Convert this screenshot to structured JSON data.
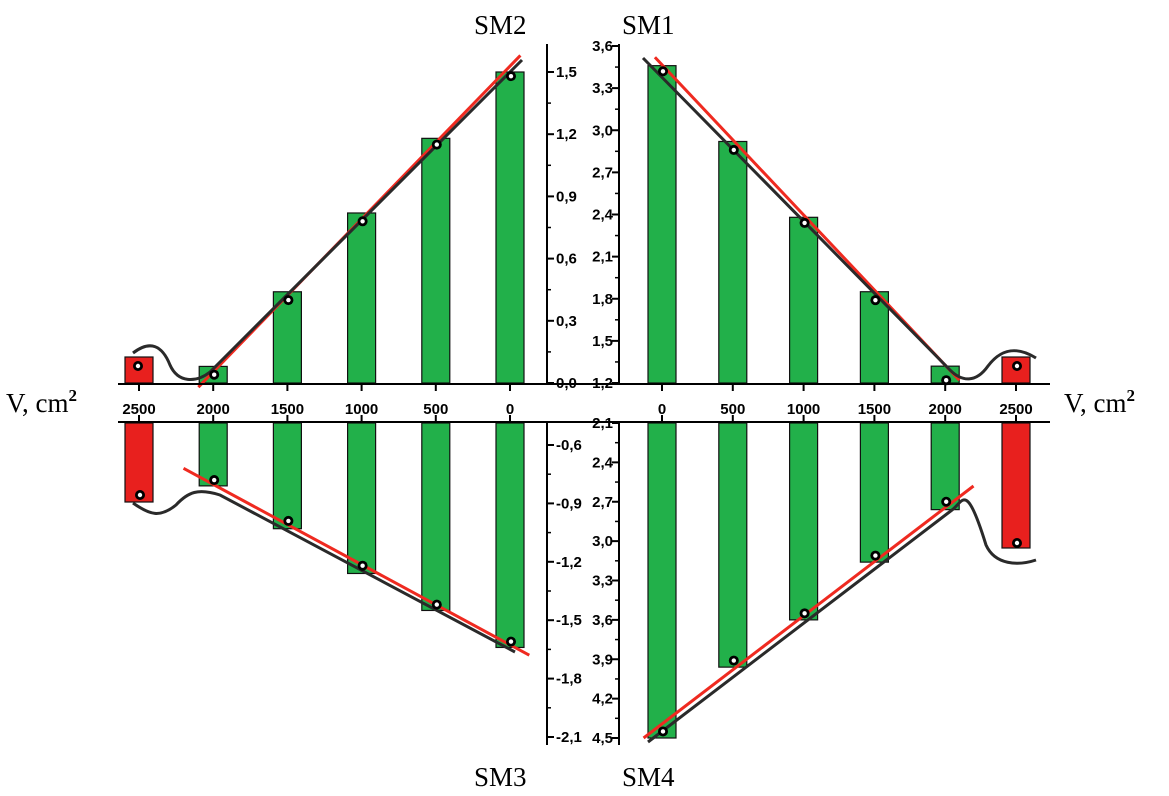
{
  "colors": {
    "bar_green": "#22b04a",
    "bar_red": "#e8201e",
    "fit_line": "#ef2a20",
    "trend_curve": "#2a2a2a",
    "axis": "#000000"
  },
  "axis_title_left": "V, cm",
  "axis_title_right": "V, cm",
  "axis_title_sup": "2",
  "chart_data": [
    {
      "type": "bar",
      "title": "SM1",
      "quadrant": "top-right",
      "categories": [
        "0",
        "500",
        "1000",
        "1500",
        "2000",
        "2500"
      ],
      "x": [
        0,
        500,
        1000,
        1500,
        2000,
        2500
      ],
      "values": [
        3.46,
        2.92,
        2.38,
        1.85,
        1.32,
        1.33
      ],
      "points": [
        3.42,
        2.86,
        2.34,
        1.79,
        1.22,
        1.3
      ],
      "ylim": [
        1.2,
        3.6
      ],
      "yticks": [
        "1,2",
        "1,5",
        "1,8",
        "2,1",
        "2,4",
        "2,7",
        "3,0",
        "3,3",
        "3,6"
      ],
      "ytick_values": [
        1.2,
        1.5,
        1.8,
        2.1,
        2.4,
        2.7,
        3.0,
        3.3,
        3.6
      ],
      "fit_line": {
        "x": [
          -50,
          2100
        ],
        "y": [
          3.52,
          1.22
        ]
      }
    },
    {
      "type": "bar",
      "title": "SM2",
      "quadrant": "top-left",
      "categories": [
        "2500",
        "2000",
        "1500",
        "1000",
        "500",
        "0"
      ],
      "x": [
        2500,
        2000,
        1500,
        1000,
        500,
        0
      ],
      "values": [
        0.13,
        0.08,
        0.44,
        0.82,
        1.18,
        1.5
      ],
      "points": [
        0.1,
        0.04,
        0.4,
        0.78,
        1.15,
        1.48
      ],
      "ylim": [
        0.0,
        1.6
      ],
      "yticks": [
        "0,0",
        "0,3",
        "0,6",
        "0,9",
        "1,2",
        "1,5"
      ],
      "ytick_values": [
        0.0,
        0.3,
        0.6,
        0.9,
        1.2,
        1.5
      ],
      "fit_line": {
        "x": [
          2100,
          -70
        ],
        "y": [
          -0.02,
          1.58
        ]
      }
    },
    {
      "type": "bar",
      "title": "SM3",
      "quadrant": "bottom-left",
      "categories": [
        "2500",
        "2000",
        "1500",
        "1000",
        "500",
        "0"
      ],
      "x": [
        2500,
        2000,
        1500,
        1000,
        500,
        0
      ],
      "values": [
        -0.88,
        -0.81,
        -1.03,
        -1.26,
        -1.45,
        -1.64
      ],
      "points": [
        -0.85,
        -0.78,
        -0.99,
        -1.22,
        -1.42,
        -1.61
      ],
      "ylim": [
        -2.1,
        -0.4
      ],
      "yticks": [
        "-0,6",
        "-0,9",
        "-1,2",
        "-1,5",
        "-1,8",
        "-2,1"
      ],
      "ytick_values": [
        -0.6,
        -0.9,
        -1.2,
        -1.5,
        -1.8,
        -2.1
      ],
      "fit_line": {
        "x": [
          2200,
          -130
        ],
        "y": [
          -0.72,
          -1.68
        ]
      }
    },
    {
      "type": "bar",
      "title": "SM4",
      "quadrant": "bottom-right",
      "categories": [
        "0",
        "500",
        "1000",
        "1500",
        "2000",
        "2500"
      ],
      "x": [
        0,
        500,
        1000,
        1500,
        2000,
        2500
      ],
      "values": [
        4.5,
        3.96,
        3.6,
        3.16,
        2.76,
        3.09
      ],
      "points": [
        4.45,
        3.91,
        3.55,
        3.11,
        2.7,
        3.03
      ],
      "ylim": [
        2.1,
        4.5
      ],
      "yticks": [
        "2,1",
        "2,4",
        "2,7",
        "3,0",
        "3,3",
        "3,6",
        "3,9",
        "4,2",
        "4,5"
      ],
      "ytick_values": [
        2.1,
        2.4,
        2.7,
        3.0,
        3.3,
        3.6,
        3.9,
        4.2,
        4.5
      ],
      "fit_line": {
        "x": [
          -130,
          2200
        ],
        "y": [
          4.5,
          2.58
        ]
      }
    }
  ]
}
